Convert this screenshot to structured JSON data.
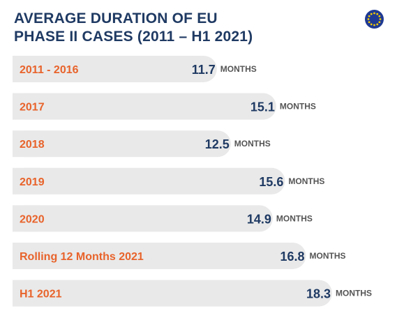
{
  "title": {
    "line1": "AVERAGE DURATION OF EU",
    "line2": "PHASE II CASES (2011 – H1 2021)"
  },
  "logo": {
    "icon": "eu-flag-icon",
    "color": "#1f3a93",
    "star_color": "#f5cc00"
  },
  "colors": {
    "bar": "#e9e9e9",
    "category": "#e8632b",
    "value": "#1f3a63",
    "unit": "#555555"
  },
  "chart_data": {
    "type": "bar",
    "orientation": "horizontal",
    "categories": [
      "2011 - 2016",
      "2017",
      "2018",
      "2019",
      "2020",
      "Rolling 12 Months 2021",
      "H1 2021"
    ],
    "values": [
      11.7,
      15.1,
      12.5,
      15.6,
      14.9,
      16.8,
      18.3
    ],
    "value_labels": [
      "11.7",
      "15.1",
      "12.5",
      "15.6",
      "14.9",
      "16.8",
      "18.3"
    ],
    "unit_label": "MONTHS",
    "xlim": [
      0,
      18.3
    ],
    "grid": false
  }
}
